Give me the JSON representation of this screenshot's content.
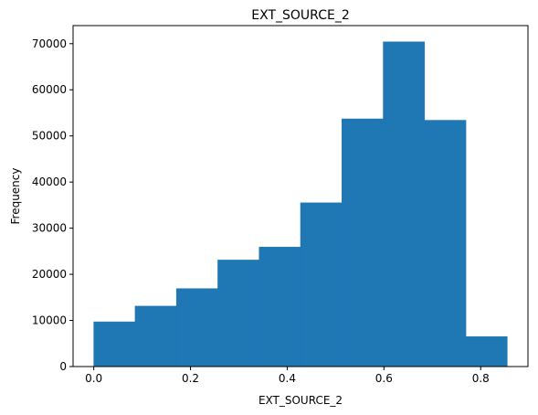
{
  "chart_data": {
    "type": "bar",
    "title": "EXT_SOURCE_2",
    "xlabel": "EXT_SOURCE_2",
    "ylabel": "Frequency",
    "bins": [
      {
        "x0": 0.0,
        "x1": 0.0855,
        "value": 9700
      },
      {
        "x0": 0.0855,
        "x1": 0.171,
        "value": 13100
      },
      {
        "x0": 0.171,
        "x1": 0.2565,
        "value": 16900
      },
      {
        "x0": 0.2565,
        "x1": 0.342,
        "value": 23100
      },
      {
        "x0": 0.342,
        "x1": 0.4275,
        "value": 25900
      },
      {
        "x0": 0.4275,
        "x1": 0.513,
        "value": 35500
      },
      {
        "x0": 0.513,
        "x1": 0.5985,
        "value": 53700
      },
      {
        "x0": 0.5985,
        "x1": 0.684,
        "value": 70400
      },
      {
        "x0": 0.684,
        "x1": 0.7695,
        "value": 53400
      },
      {
        "x0": 0.7695,
        "x1": 0.855,
        "value": 6500
      }
    ],
    "xlim": [
      -0.04275,
      0.89775
    ],
    "ylim": [
      0,
      73920
    ],
    "xticks": [
      0.0,
      0.2,
      0.4,
      0.6,
      0.8
    ],
    "xtick_labels": [
      "0.0",
      "0.2",
      "0.4",
      "0.6",
      "0.8"
    ],
    "yticks": [
      0,
      10000,
      20000,
      30000,
      40000,
      50000,
      60000,
      70000
    ],
    "ytick_labels": [
      "0",
      "10000",
      "20000",
      "30000",
      "40000",
      "50000",
      "60000",
      "70000"
    ],
    "grid": false,
    "bar_color": "#1f77b4",
    "edge_color": "#1f77b4"
  }
}
